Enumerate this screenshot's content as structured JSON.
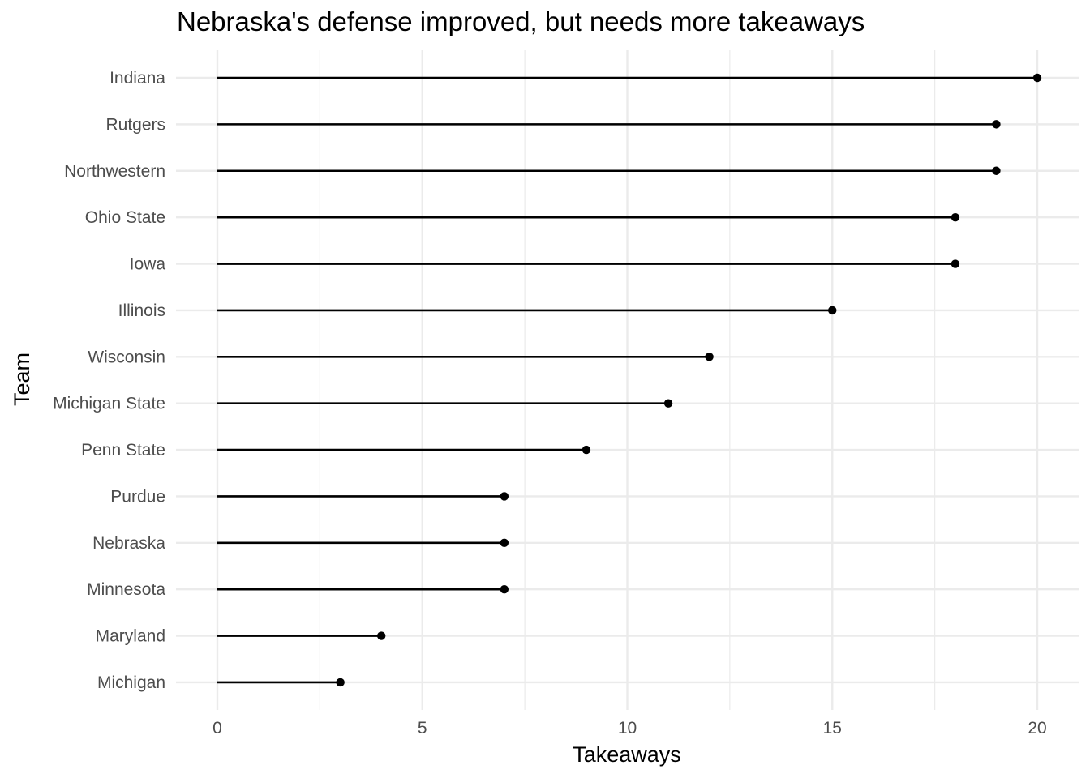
{
  "chart_data": {
    "type": "lollipop",
    "title": "Nebraska's defense improved, but needs more takeaways",
    "xlabel": "Takeaways",
    "ylabel": "Team",
    "xlim": [
      0,
      20
    ],
    "x_ticks": [
      0,
      5,
      10,
      15,
      20
    ],
    "grid": true,
    "categories": [
      "Indiana",
      "Rutgers",
      "Northwestern",
      "Ohio State",
      "Iowa",
      "Illinois",
      "Wisconsin",
      "Michigan State",
      "Penn State",
      "Purdue",
      "Nebraska",
      "Minnesota",
      "Maryland",
      "Michigan"
    ],
    "values": [
      20,
      19,
      19,
      18,
      18,
      15,
      12,
      11,
      9,
      7,
      7,
      7,
      4,
      3
    ],
    "colors": {
      "mark": "#000000",
      "grid": "#ebebeb",
      "tick_text": "#4d4d4d"
    }
  }
}
